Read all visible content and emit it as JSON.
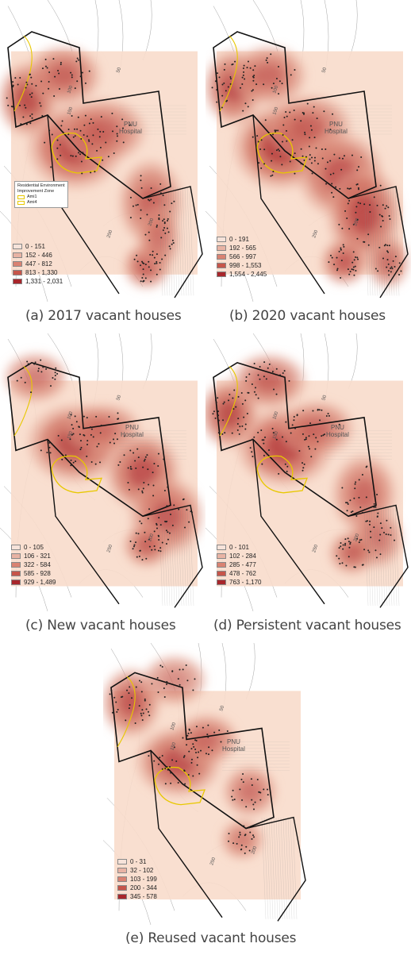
{
  "panels": [
    {
      "id": "a",
      "caption": "(a) 2017 vacant houses",
      "hospital": [
        "PNU",
        "Hospital"
      ],
      "legend": [
        "0 - 151",
        "152 - 446",
        "447 - 812",
        "813 - 1,330",
        "1,331 - 2,031"
      ],
      "zone_legend": {
        "title_lines": [
          "Residential Environment",
          "Improvement Zone"
        ],
        "items": [
          "Ami1",
          "Ami4"
        ]
      },
      "contour_labels": [
        "100",
        "50",
        "150",
        "200",
        "250"
      ]
    },
    {
      "id": "b",
      "caption": "(b) 2020 vacant houses",
      "hospital": [
        "PNU",
        "Hospital"
      ],
      "legend": [
        "0 - 191",
        "192 - 565",
        "566 - 997",
        "998 - 1,553",
        "1,554 - 2,445"
      ],
      "contour_labels": [
        "100",
        "50",
        "150",
        "200",
        "250"
      ]
    },
    {
      "id": "c",
      "caption": "(c) New vacant houses",
      "hospital": [
        "PNU",
        "Hospital"
      ],
      "legend": [
        "0 - 105",
        "106 - 321",
        "322 - 584",
        "585 - 928",
        "929 - 1,489"
      ],
      "contour_labels": [
        "100",
        "50",
        "150",
        "200",
        "250"
      ]
    },
    {
      "id": "d",
      "caption": "(d) Persistent vacant houses",
      "hospital": [
        "PNU",
        "Hospital"
      ],
      "legend": [
        "0 - 101",
        "102 - 284",
        "285 - 477",
        "478 - 762",
        "763 - 1,170"
      ],
      "contour_labels": [
        "100",
        "50",
        "150",
        "200",
        "250"
      ]
    },
    {
      "id": "e",
      "caption": "(e) Reused vacant houses",
      "hospital": [
        "PNU",
        "Hospital"
      ],
      "legend": [
        "0 - 31",
        "32 - 102",
        "103 - 199",
        "200 - 344",
        "345 - 578"
      ],
      "contour_labels": [
        "100",
        "50",
        "150",
        "200",
        "250"
      ]
    }
  ],
  "legend_colors": [
    "#f6e3da",
    "#e8b3a4",
    "#d98272",
    "#c6554a",
    "#a8262b"
  ],
  "colors": {
    "background_tint": "#f8dccb",
    "hotspot": "#b3373a",
    "boundary": "#111111",
    "zone": "#e8c800",
    "contour": "#666666"
  }
}
